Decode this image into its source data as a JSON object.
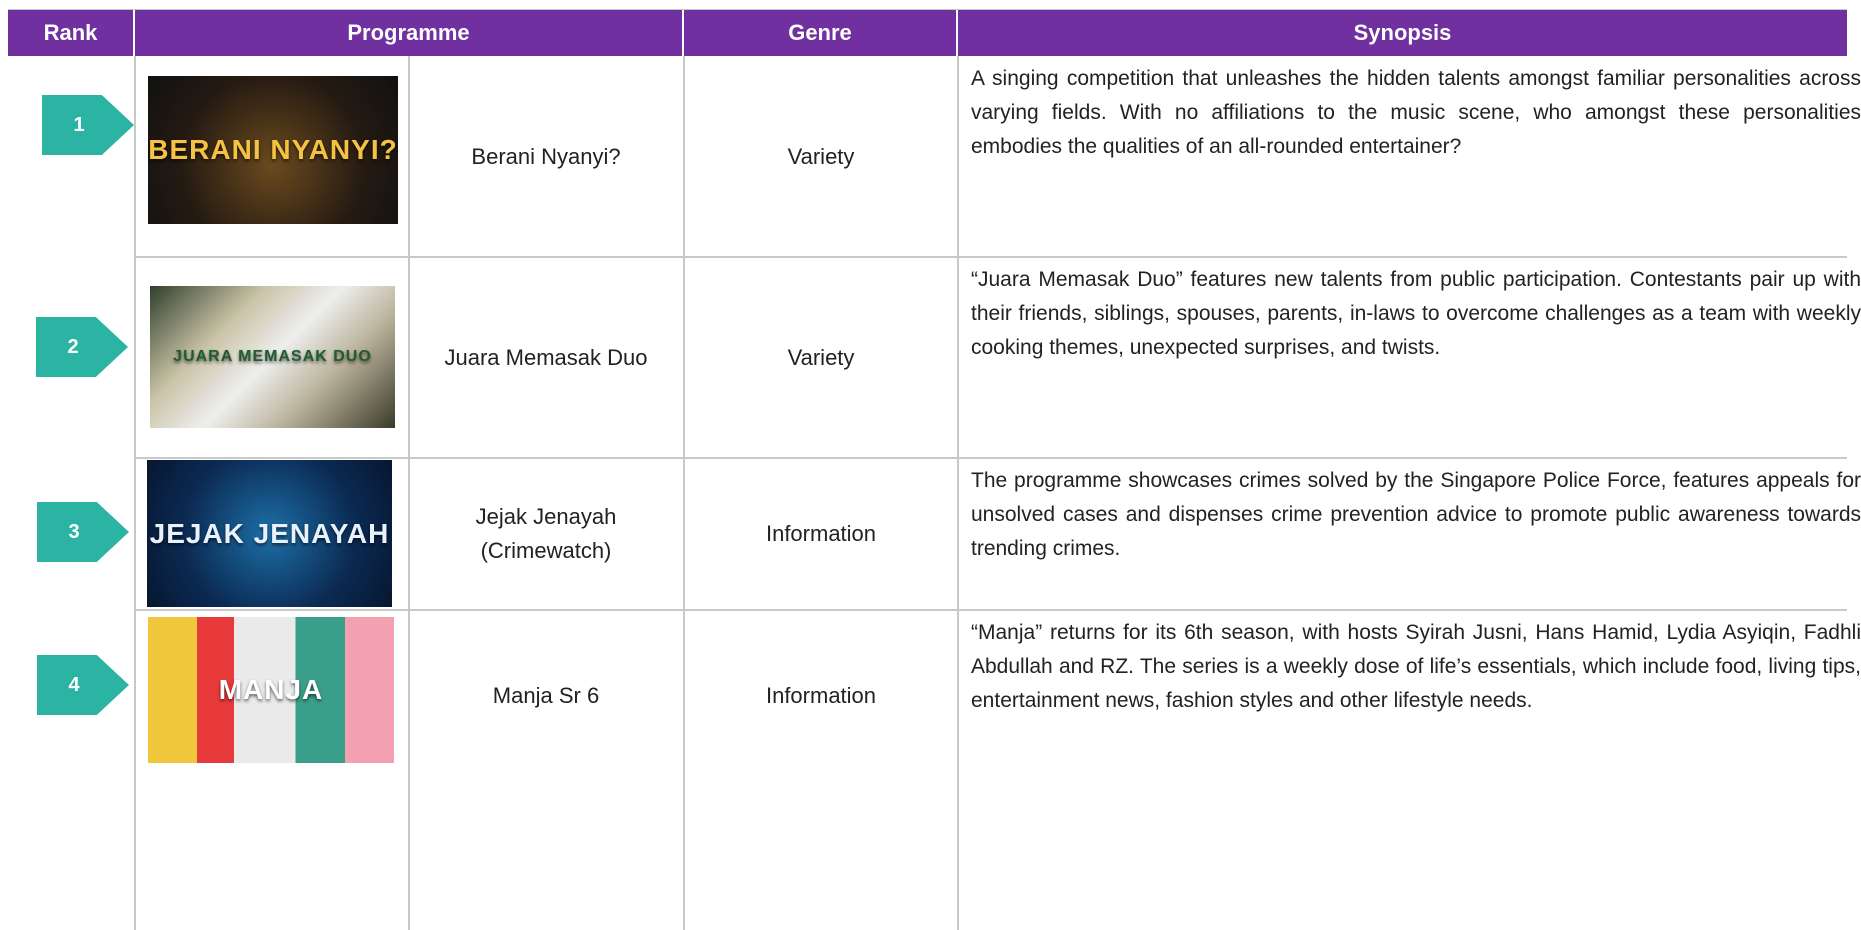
{
  "header": {
    "columns": [
      "Rank",
      "Programme",
      "Genre",
      "Synopsis"
    ]
  },
  "rows": [
    {
      "rank": "1",
      "thumbnail_text": "BERANI NYANYI?",
      "programme": "Berani Nyanyi?",
      "genre": "Variety",
      "synopsis": "A singing competition that unleashes the hidden talents amongst familiar personalities across varying fields. With no affiliations to the music scene, who amongst these personalities embodies the qualities of an all-rounded entertainer?"
    },
    {
      "rank": "2",
      "thumbnail_text": "JUARA MEMASAK DUO",
      "programme": "Juara Memasak Duo",
      "genre": "Variety",
      "synopsis": "“Juara Memasak Duo” features new talents from public participation. Contestants pair up with their friends, siblings, spouses, parents, in-laws to overcome challenges as a team with weekly cooking themes, unexpected surprises, and twists."
    },
    {
      "rank": "3",
      "thumbnail_text": "JEJAK JENAYAH",
      "programme": "Jejak Jenayah\n(Crimewatch)",
      "genre": "Information",
      "synopsis": "The programme showcases crimes solved by the Singapore Police Force, features appeals for unsolved cases and dispenses crime prevention advice to promote public awareness towards trending crimes."
    },
    {
      "rank": "4",
      "thumbnail_text": "MANJA",
      "programme": "Manja Sr 6",
      "genre": "Information",
      "synopsis": "“Manja” returns for its 6th season, with hosts Syirah Jusni, Hans Hamid, Lydia Asyiqin, Fadhli Abdullah and RZ. The series is a weekly dose of life’s essentials, which include food, living tips, entertainment news, fashion styles and other lifestyle needs."
    }
  ]
}
